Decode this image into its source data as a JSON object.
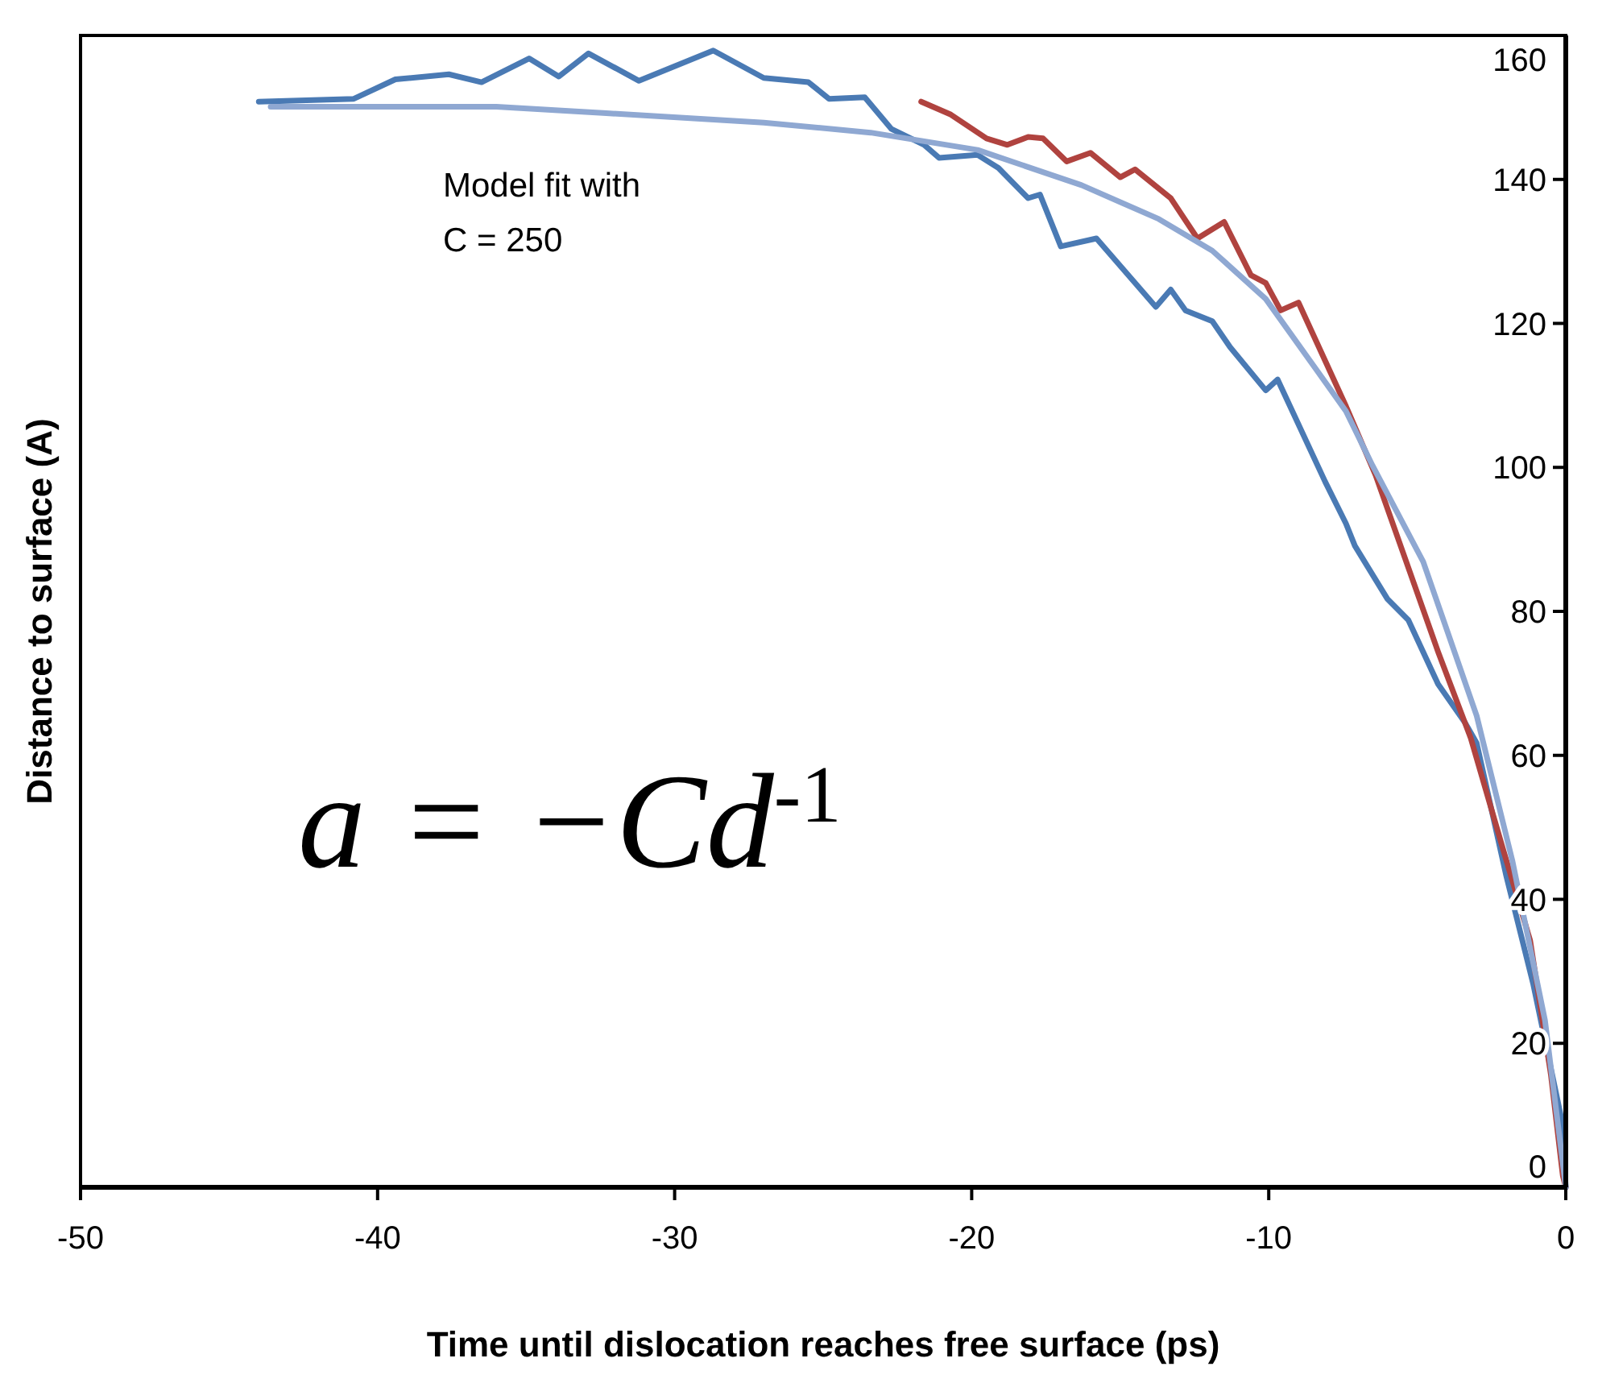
{
  "chart_data": {
    "type": "line",
    "xlabel": "Time until dislocation reaches free surface (ps)",
    "ylabel": "Distance to surface (A)",
    "annotations": [
      "Model fit with\nC = 250",
      "a = −Cd$^{-1}$"
    ],
    "xlim": [
      -50,
      0
    ],
    "ylim": [
      0,
      160
    ],
    "xticks": [
      -50,
      -40,
      -30,
      -20,
      -10,
      0
    ],
    "yticks": [
      0,
      20,
      40,
      60,
      80,
      100,
      120,
      140,
      160
    ],
    "grid": false,
    "series": [
      {
        "color": "#4a7ab4",
        "x": [
          -44.0,
          -40.8,
          -39.4,
          -37.6,
          -36.5,
          -34.9,
          -33.9,
          -32.9,
          -31.2,
          -28.7,
          -27.0,
          -25.5,
          -24.8,
          -23.6,
          -22.7,
          -21.6,
          -21.1,
          -19.8,
          -19.1,
          -18.1,
          -17.7,
          -17.0,
          -15.8,
          -13.8,
          -13.3,
          -12.8,
          -11.9,
          -11.3,
          -10.1,
          -9.7,
          -8.1,
          -7.4,
          -7.1,
          -6.0,
          -5.3,
          -4.3,
          -3.4,
          -3.0,
          -2.0,
          -1.1,
          -0.16,
          0
        ],
        "values": [
          150.8,
          151.2,
          153.9,
          154.6,
          153.5,
          156.8,
          154.3,
          157.5,
          153.7,
          157.9,
          154.1,
          153.5,
          151.2,
          151.4,
          147.0,
          144.8,
          143.0,
          143.4,
          141.6,
          137.4,
          137.9,
          130.7,
          131.8,
          122.3,
          124.7,
          121.8,
          120.3,
          116.7,
          110.7,
          112.2,
          98.0,
          92.2,
          89.1,
          81.7,
          78.8,
          69.9,
          64.6,
          61.7,
          43.2,
          28.3,
          9.8,
          0
        ]
      },
      {
        "color": "#b0433f",
        "x": [
          -21.7,
          -20.7,
          -19.5,
          -18.8,
          -18.1,
          -17.6,
          -16.8,
          -16.0,
          -15.0,
          -14.5,
          -13.3,
          -12.4,
          -11.5,
          -10.6,
          -10.1,
          -9.6,
          -9.0,
          -7.4,
          -6.4,
          -5.5,
          -4.3,
          -3.2,
          -2.1,
          -1.2,
          -0.5,
          -0.1,
          0
        ],
        "values": [
          150.8,
          149.0,
          145.7,
          144.8,
          145.9,
          145.7,
          142.5,
          143.7,
          140.3,
          141.4,
          137.4,
          131.8,
          134.1,
          126.7,
          125.6,
          121.8,
          122.9,
          108.5,
          98.9,
          88.4,
          74.4,
          62.4,
          46.8,
          34.3,
          15.6,
          1.6,
          0
        ]
      },
      {
        "color": "#8fa8d2",
        "x": [
          -43.6,
          -36.0,
          -32.3,
          -27.0,
          -23.4,
          -19.8,
          -16.3,
          -13.7,
          -11.9,
          -10.1,
          -8.4,
          -7.4,
          -6.5,
          -4.8,
          -3.0,
          -1.8,
          -0.7,
          0
        ],
        "values": [
          150.1,
          150.1,
          149.2,
          147.9,
          146.5,
          144.1,
          139.2,
          134.5,
          130.1,
          123.4,
          113.6,
          107.8,
          100.2,
          86.9,
          65.5,
          45.4,
          23.2,
          0
        ]
      }
    ]
  }
}
